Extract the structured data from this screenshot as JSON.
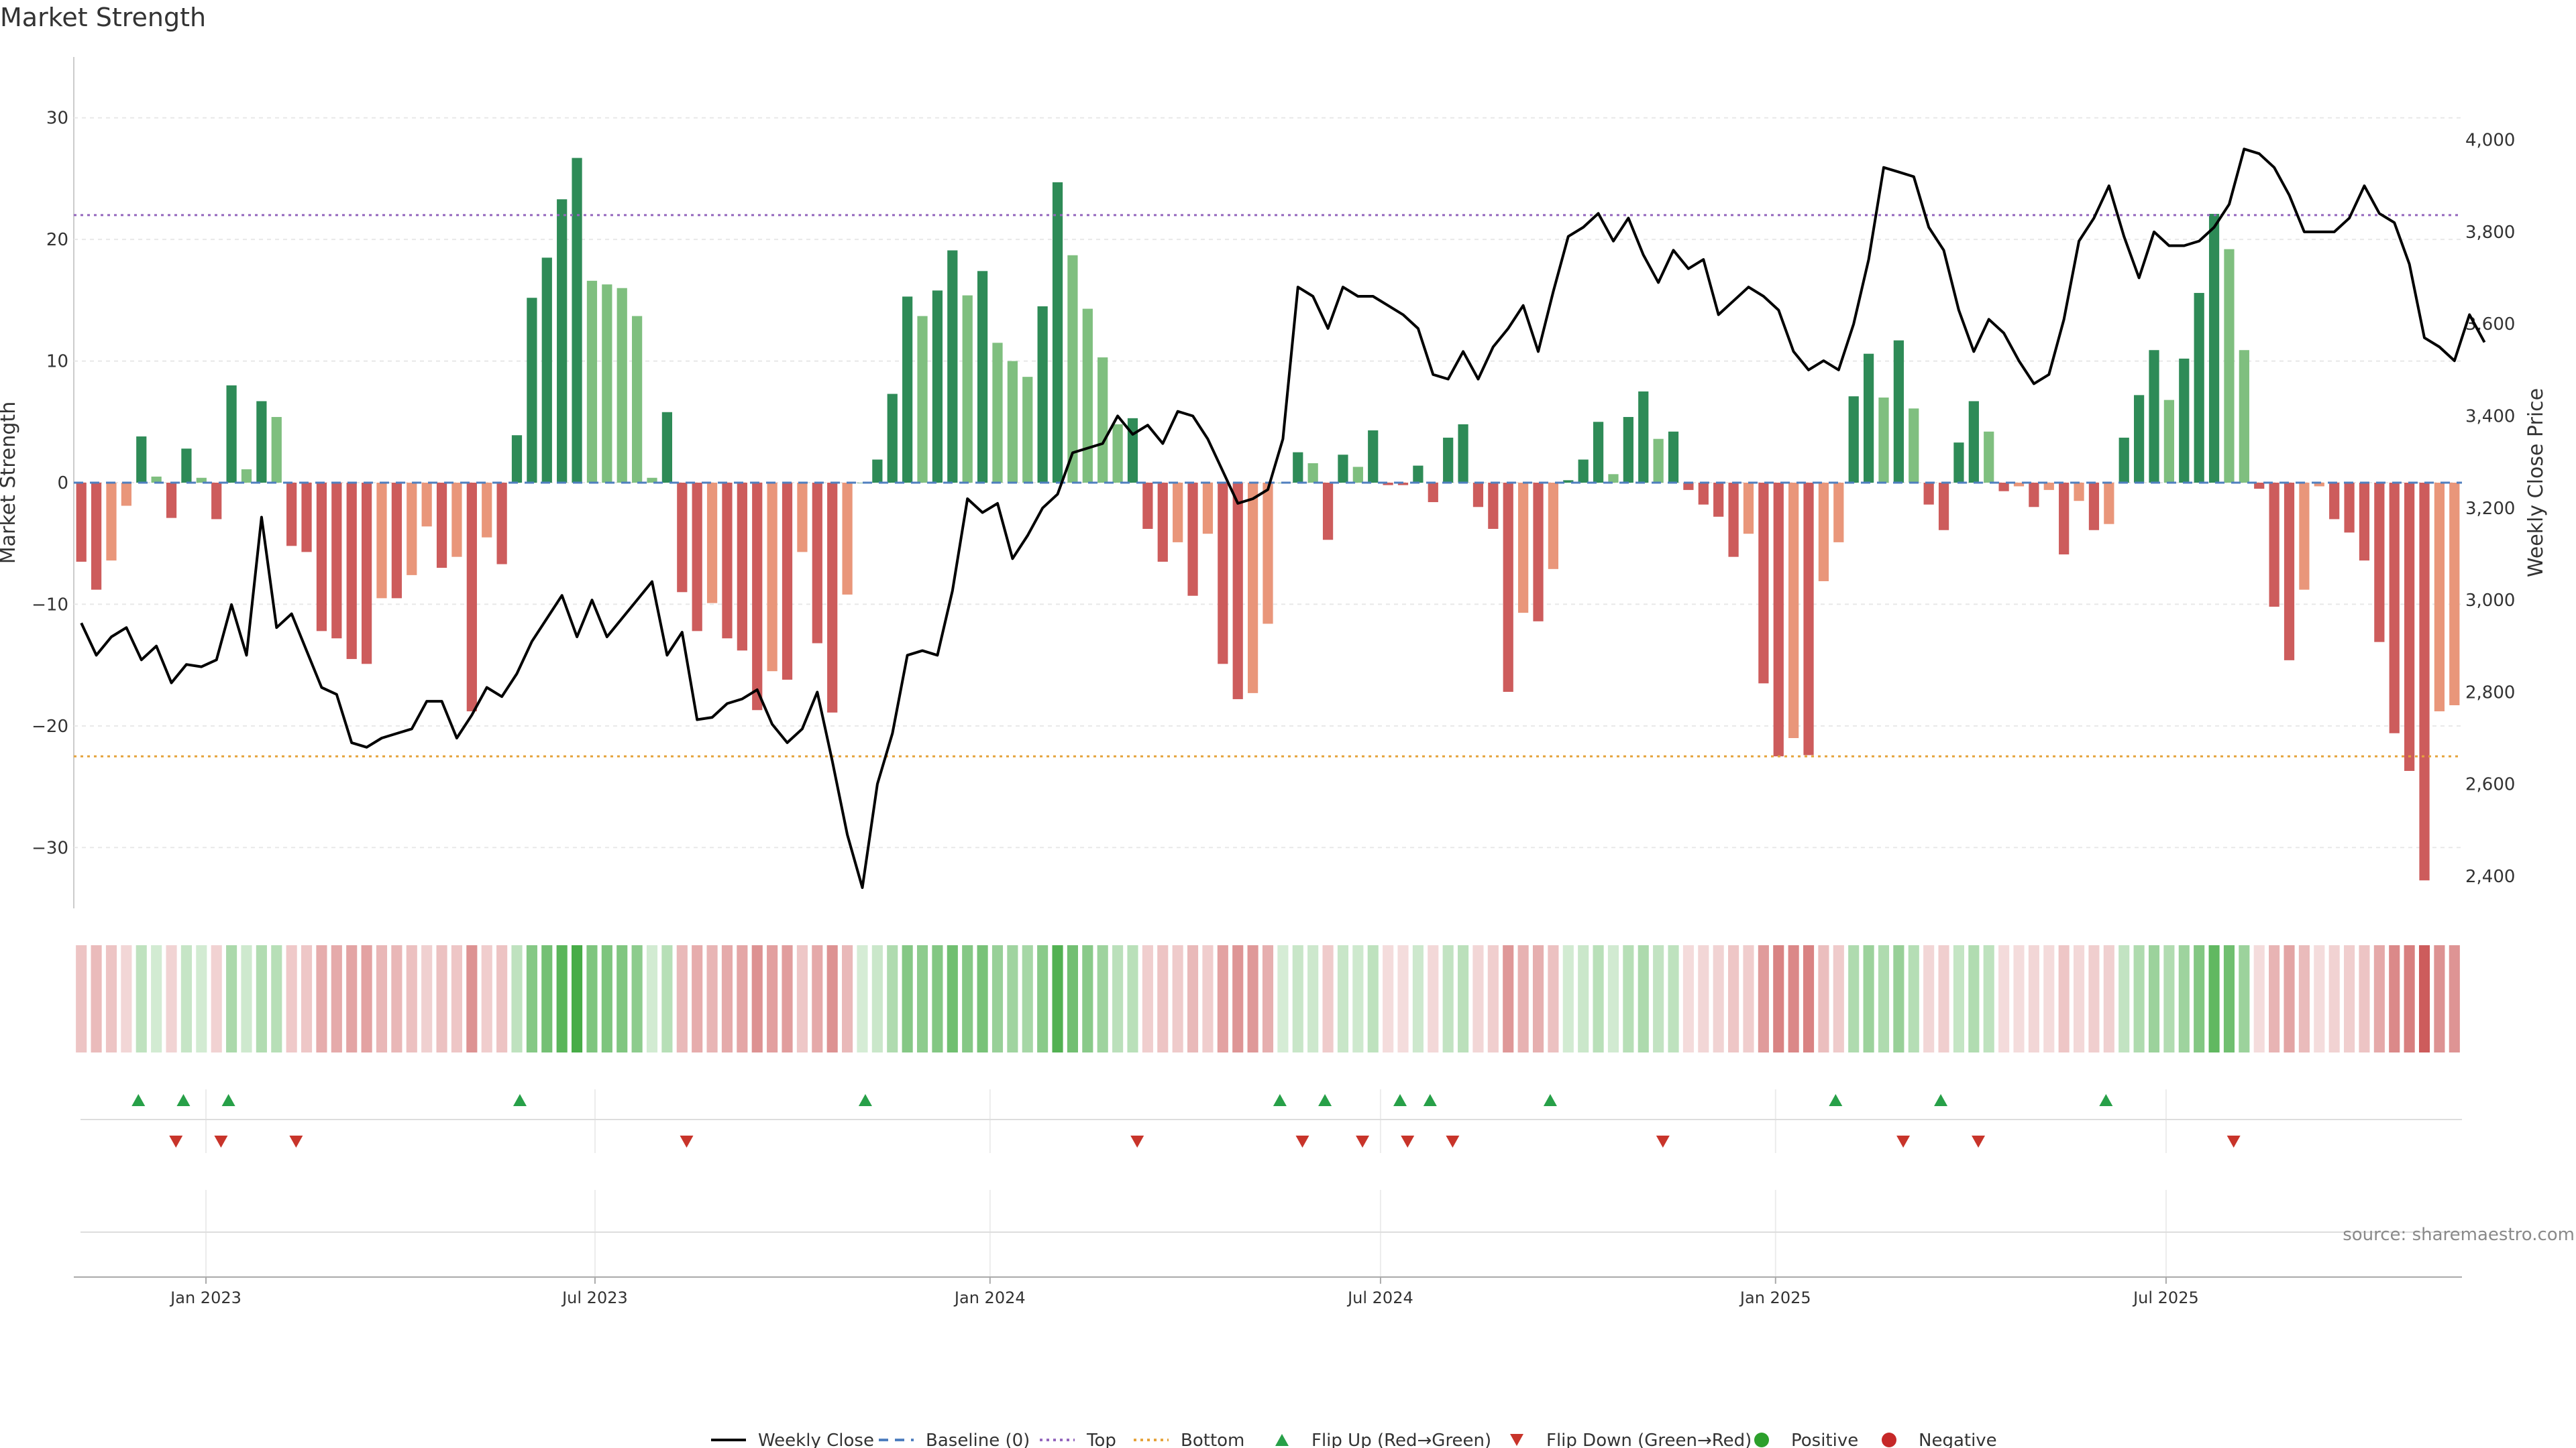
{
  "chart_data": {
    "type": "bar",
    "title": "Market Strength",
    "ylabel": "Market Strength",
    "y2label": "Weekly Close Price",
    "source": "source: sharemaestro.com",
    "ylim": [
      -35,
      35
    ],
    "y2lim": [
      2330,
      4180
    ],
    "yticks": [
      -30,
      -20,
      -10,
      0,
      10,
      20,
      30
    ],
    "y2ticks": [
      2400,
      2600,
      2800,
      3000,
      3200,
      3400,
      3600,
      3800,
      4000
    ],
    "y2tick_labels": [
      "2,400",
      "2,600",
      "2,800",
      "3,000",
      "3,200",
      "3,400",
      "3,600",
      "3,800",
      "4,000"
    ],
    "top_line": 22,
    "bottom_line": -22.5,
    "xticks": [
      {
        "label": "Jan 2023",
        "week": 8.3
      },
      {
        "label": "Jul 2023",
        "week": 34.2
      },
      {
        "label": "Jan 2024",
        "week": 60.5
      },
      {
        "label": "Jul 2024",
        "week": 86.5
      },
      {
        "label": "Jan 2025",
        "week": 112.8
      },
      {
        "label": "Jul 2025",
        "week": 138.8
      }
    ],
    "strength": [
      -6.5,
      -8.8,
      -6.4,
      -1.9,
      3.8,
      0.5,
      -2.9,
      2.8,
      0.4,
      -3.0,
      8.0,
      1.1,
      6.7,
      5.4,
      -5.2,
      -5.7,
      -12.2,
      -12.8,
      -14.5,
      -14.9,
      -9.5,
      -9.5,
      -7.6,
      -3.6,
      -7.0,
      -6.1,
      -18.8,
      -4.5,
      -6.7,
      3.9,
      15.2,
      18.5,
      23.3,
      26.7,
      16.6,
      16.3,
      16.0,
      13.7,
      0.4,
      5.8,
      -9.0,
      -12.2,
      -9.9,
      -12.8,
      -13.8,
      -18.7,
      -15.5,
      -16.2,
      -5.7,
      -13.2,
      -18.9,
      -9.2,
      0,
      1.9,
      7.3,
      15.3,
      13.7,
      15.8,
      19.1,
      15.4,
      17.4,
      11.5,
      10.0,
      8.7,
      14.5,
      24.7,
      18.7,
      14.3,
      10.3,
      4.8,
      5.3,
      -3.8,
      -6.5,
      -4.9,
      -9.3,
      -4.2,
      -14.9,
      -17.8,
      -17.3,
      -11.6,
      0,
      2.5,
      1.6,
      -4.7,
      2.3,
      1.3,
      4.3,
      -0.2,
      -0.2,
      1.4,
      -1.6,
      3.7,
      4.8,
      -2.0,
      -3.8,
      -17.2,
      -10.7,
      -11.4,
      -7.1,
      0.2,
      1.9,
      5.0,
      0.7,
      5.4,
      7.5,
      3.6,
      4.2,
      -0.6,
      -1.8,
      -2.8,
      -6.1,
      -4.2,
      -16.5,
      -22.5,
      -21.0,
      -22.4,
      -8.1,
      -4.9,
      7.1,
      10.6,
      7.0,
      11.7,
      6.1,
      -1.8,
      -3.9,
      3.3,
      6.7,
      4.2,
      -0.7,
      -0.3,
      -2.0,
      -0.6,
      -5.9,
      -1.5,
      -3.9,
      -3.4,
      3.7,
      7.2,
      10.9,
      6.8,
      10.2,
      15.6,
      22.1,
      19.2,
      10.9,
      -0.5,
      -10.2,
      -14.6,
      -8.8,
      -0.3,
      -3.0,
      -4.1,
      -6.4,
      -13.1,
      -20.6,
      -23.7,
      -32.7,
      -18.8,
      -18.3
    ],
    "weekly_close": [
      2950,
      2880,
      2920,
      2940,
      2870,
      2900,
      2820,
      2860,
      2855,
      2870,
      2990,
      2880,
      3180,
      2940,
      2970,
      2890,
      2810,
      2795,
      2690,
      2680,
      2700,
      2710,
      2720,
      2780,
      2780,
      2700,
      2750,
      2810,
      2790,
      2840,
      2910,
      2960,
      3010,
      2920,
      3000,
      2920,
      2960,
      3000,
      3040,
      2880,
      2930,
      2740,
      2745,
      2775,
      2785,
      2805,
      2730,
      2690,
      2720,
      2800,
      2650,
      2490,
      2375,
      2600,
      2710,
      2880,
      2890,
      2880,
      3020,
      3220,
      3190,
      3210,
      3090,
      3140,
      3200,
      3230,
      3320,
      3330,
      3340,
      3400,
      3360,
      3380,
      3340,
      3410,
      3400,
      3350,
      3280,
      3210,
      3220,
      3240,
      3350,
      3680,
      3660,
      3590,
      3680,
      3660,
      3660,
      3640,
      3620,
      3590,
      3490,
      3480,
      3540,
      3480,
      3550,
      3590,
      3640,
      3540,
      3670,
      3790,
      3810,
      3840,
      3780,
      3830,
      3750,
      3690,
      3760,
      3720,
      3740,
      3620,
      3650,
      3680,
      3660,
      3630,
      3540,
      3500,
      3520,
      3500,
      3600,
      3740,
      3940,
      3930,
      3920,
      3810,
      3760,
      3630,
      3540,
      3610,
      3580,
      3520,
      3470,
      3490,
      3610,
      3780,
      3830,
      3900,
      3790,
      3700,
      3800,
      3770,
      3770,
      3780,
      3810,
      3860,
      3980,
      3970,
      3940,
      3880,
      3800,
      3800,
      3800,
      3830,
      3900,
      3840,
      3820,
      3730,
      3570,
      3550,
      3520,
      3620,
      3560
    ],
    "flip_up_weeks": [
      3.8,
      6.8,
      9.8,
      29.2,
      52.2,
      79.8,
      82.8,
      87.8,
      89.8,
      97.8,
      116.8,
      123.8,
      134.8
    ],
    "flip_down_weeks": [
      6.3,
      9.3,
      14.3,
      40.3,
      70.3,
      81.3,
      85.3,
      88.3,
      91.3,
      105.3,
      121.3,
      126.3,
      143.3
    ],
    "colors": {
      "strong_positive": "#2e8b57",
      "weak_positive": "#7fbf7f",
      "strong_negative": "#cd5c5c",
      "weak_negative": "#e9967a",
      "price_line": "#000000",
      "top_line": "#9467bd",
      "bottom_line": "#e5a33c",
      "baseline": "#4f7fbf",
      "flip_up": "#27a048",
      "flip_down": "#c8342a",
      "positive_dot": "#2ca02c",
      "negative_dot": "#c62828"
    },
    "legend": [
      {
        "label": "Weekly Close",
        "marker": "line"
      },
      {
        "label": "Baseline (0)",
        "marker": "dash"
      },
      {
        "label": "Top",
        "marker": "dot-line"
      },
      {
        "label": "Bottom",
        "marker": "dot-line-orange"
      },
      {
        "label": "Flip Up (Red→Green)",
        "marker": "triangle-up"
      },
      {
        "label": "Flip Down (Green→Red)",
        "marker": "triangle-down"
      },
      {
        "label": "Positive",
        "marker": "circle-green"
      },
      {
        "label": "Negative",
        "marker": "circle-red"
      }
    ]
  }
}
